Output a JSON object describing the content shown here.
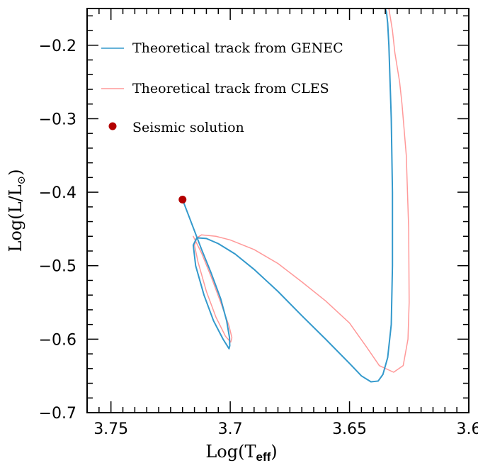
{
  "chart_data": {
    "type": "line",
    "title": "",
    "xlabel": "Log(T",
    "xlabel_sub": "eff",
    "xlabel_close": ")",
    "ylabel": "Log(L/L",
    "ylabel_sub": "⊙",
    "ylabel_close": ")",
    "xlim": [
      3.76,
      3.6
    ],
    "ylim": [
      -0.7,
      -0.15
    ],
    "x_reversed": true,
    "grid": false,
    "legend_position": "top-left",
    "x_ticks": [
      {
        "value": 3.75,
        "label": "3.75"
      },
      {
        "value": 3.7,
        "label": "3.7"
      },
      {
        "value": 3.65,
        "label": "3.65"
      },
      {
        "value": 3.6,
        "label": "3.6"
      }
    ],
    "y_ticks": [
      {
        "value": -0.2,
        "label": "−0.2"
      },
      {
        "value": -0.3,
        "label": "−0.3"
      },
      {
        "value": -0.4,
        "label": "−0.4"
      },
      {
        "value": -0.5,
        "label": "−0.5"
      },
      {
        "value": -0.6,
        "label": "−0.6"
      },
      {
        "value": -0.7,
        "label": "−0.7"
      }
    ],
    "series": [
      {
        "name": "Theoretical track from GENEC",
        "color": "#3399cc",
        "x": [
          3.72,
          3.718,
          3.716,
          3.714,
          3.712,
          3.708,
          3.704,
          3.7015,
          3.7003,
          3.7002,
          3.7005,
          3.703,
          3.707,
          3.711,
          3.7145,
          3.7155,
          3.714,
          3.71,
          3.705,
          3.698,
          3.69,
          3.68,
          3.67,
          3.66,
          3.65,
          3.645,
          3.641,
          3.638,
          3.636,
          3.634,
          3.6325,
          3.632,
          3.632,
          3.6325,
          3.633,
          3.6335,
          3.634,
          3.6345,
          3.635
        ],
        "y": [
          -0.41,
          -0.427,
          -0.444,
          -0.461,
          -0.478,
          -0.51,
          -0.545,
          -0.575,
          -0.598,
          -0.609,
          -0.613,
          -0.6,
          -0.575,
          -0.54,
          -0.5,
          -0.472,
          -0.462,
          -0.463,
          -0.47,
          -0.484,
          -0.505,
          -0.535,
          -0.568,
          -0.6,
          -0.633,
          -0.65,
          -0.658,
          -0.657,
          -0.648,
          -0.625,
          -0.58,
          -0.5,
          -0.4,
          -0.3,
          -0.25,
          -0.2,
          -0.17,
          -0.155,
          -0.15
        ]
      },
      {
        "name": "Theoretical track from CLES",
        "color": "#ff9999",
        "x": [
          3.7155,
          3.712,
          3.708,
          3.704,
          3.7005,
          3.6993,
          3.6998,
          3.702,
          3.706,
          3.71,
          3.7135,
          3.715,
          3.714,
          3.712,
          3.706,
          3.7,
          3.69,
          3.68,
          3.67,
          3.66,
          3.65,
          3.643,
          3.6375,
          3.6315,
          3.6275,
          3.6255,
          3.625,
          3.6252,
          3.6262,
          3.628,
          3.629,
          3.631,
          3.632,
          3.6335
        ],
        "y": [
          -0.46,
          -0.483,
          -0.515,
          -0.55,
          -0.582,
          -0.598,
          -0.604,
          -0.596,
          -0.57,
          -0.535,
          -0.495,
          -0.472,
          -0.462,
          -0.458,
          -0.46,
          -0.465,
          -0.478,
          -0.497,
          -0.522,
          -0.548,
          -0.578,
          -0.61,
          -0.636,
          -0.645,
          -0.636,
          -0.6,
          -0.55,
          -0.45,
          -0.35,
          -0.28,
          -0.25,
          -0.21,
          -0.18,
          -0.15
        ]
      }
    ],
    "points": [
      {
        "name": "Seismic solution",
        "color": "#b30000",
        "x": 3.72,
        "y": -0.41
      }
    ]
  }
}
